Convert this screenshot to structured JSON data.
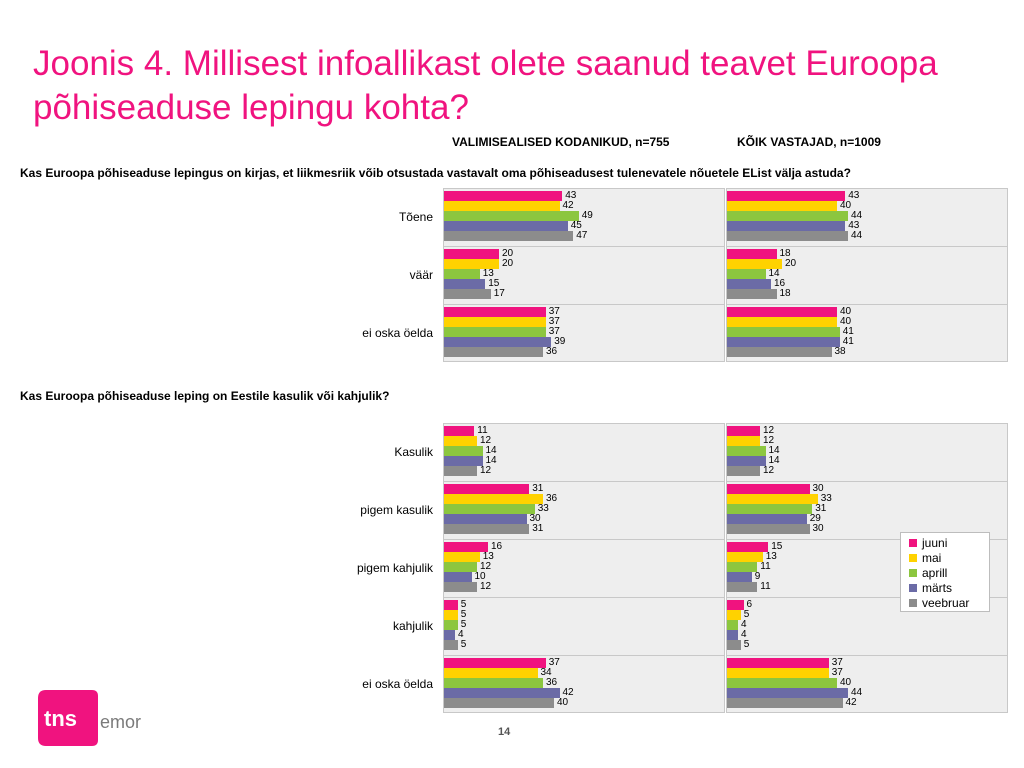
{
  "title": "Joonis 4. Millisest infoallikast olete saanud teavet Euroopa põhiseaduse lepingu kohta?",
  "column_headers": [
    "VALIMISEALISED KODANIKUD, n=755",
    "KÕIK VASTAJAD, n=1009"
  ],
  "page_number": "14",
  "logo": {
    "brand": "tns",
    "sub": "emor",
    "color": "#f0137f"
  },
  "colors": {
    "juuni": "#f0137f",
    "mai": "#ffd200",
    "aprill": "#8cc63f",
    "märts": "#6b6ba6",
    "veebruar": "#8c8c8c"
  },
  "legend": [
    "juuni",
    "mai",
    "aprill",
    "märts",
    "veebruar"
  ],
  "chart_data": [
    {
      "type": "bar",
      "orientation": "horizontal",
      "question": "Kas Euroopa põhiseaduse lepingus on kirjas, et liikmesriik võib otsustada vastavalt oma põhiseadusest tulenevatele nõuetele EList välja astuda?",
      "categories": [
        "Tõene",
        "väär",
        "ei oska öelda"
      ],
      "panels": [
        {
          "name": "VALIMISEALISED KODANIKUD, n=755",
          "series": [
            {
              "name": "juuni",
              "values": [
                43,
                20,
                37
              ]
            },
            {
              "name": "mai",
              "values": [
                42,
                20,
                37
              ]
            },
            {
              "name": "aprill",
              "values": [
                49,
                13,
                37
              ]
            },
            {
              "name": "märts",
              "values": [
                45,
                15,
                39
              ]
            },
            {
              "name": "veebruar",
              "values": [
                47,
                17,
                36
              ]
            }
          ]
        },
        {
          "name": "KÕIK VASTAJAD, n=1009",
          "series": [
            {
              "name": "juuni",
              "values": [
                43,
                18,
                40
              ]
            },
            {
              "name": "mai",
              "values": [
                40,
                20,
                40
              ]
            },
            {
              "name": "aprill",
              "values": [
                44,
                14,
                41
              ]
            },
            {
              "name": "märts",
              "values": [
                43,
                16,
                41
              ]
            },
            {
              "name": "veebruar",
              "values": [
                44,
                18,
                38
              ]
            }
          ]
        }
      ],
      "xlim": [
        0,
        50
      ]
    },
    {
      "type": "bar",
      "orientation": "horizontal",
      "question": "Kas Euroopa põhiseaduse leping on Eestile kasulik või kahjulik?",
      "categories": [
        "Kasulik",
        "pigem kasulik",
        "pigem kahjulik",
        "kahjulik",
        "ei oska öelda"
      ],
      "panels": [
        {
          "name": "VALIMISEALISED KODANIKUD, n=755",
          "series": [
            {
              "name": "juuni",
              "values": [
                11,
                31,
                16,
                5,
                37
              ]
            },
            {
              "name": "mai",
              "values": [
                12,
                36,
                13,
                5,
                34
              ]
            },
            {
              "name": "aprill",
              "values": [
                14,
                33,
                12,
                5,
                36
              ]
            },
            {
              "name": "märts",
              "values": [
                14,
                30,
                10,
                4,
                42
              ]
            },
            {
              "name": "veebruar",
              "values": [
                12,
                31,
                12,
                5,
                40
              ]
            }
          ]
        },
        {
          "name": "KÕIK VASTAJAD, n=1009",
          "series": [
            {
              "name": "juuni",
              "values": [
                12,
                30,
                15,
                6,
                37
              ]
            },
            {
              "name": "mai",
              "values": [
                12,
                33,
                13,
                5,
                37
              ]
            },
            {
              "name": "aprill",
              "values": [
                14,
                31,
                11,
                4,
                40
              ]
            },
            {
              "name": "märts",
              "values": [
                14,
                29,
                9,
                4,
                44
              ]
            },
            {
              "name": "veebruar",
              "values": [
                12,
                30,
                11,
                5,
                42
              ]
            }
          ]
        }
      ],
      "xlim": [
        0,
        50
      ]
    }
  ]
}
